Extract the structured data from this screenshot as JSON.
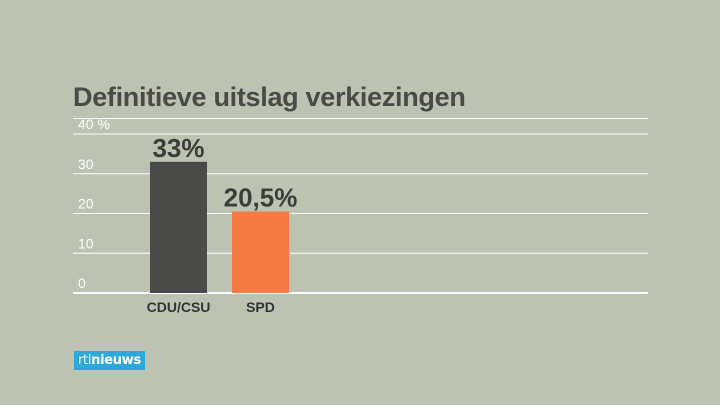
{
  "title": "Definitieve uitslag verkiezingen",
  "logo": {
    "prefix": "rtl",
    "name": "nieuws"
  },
  "chart_data": {
    "type": "bar",
    "categories": [
      "CDU/CSU",
      "SPD"
    ],
    "values": [
      33,
      20.5
    ],
    "data_labels": [
      "33%",
      "20,5%"
    ],
    "colors": [
      "#4a4a48",
      "#f57a45"
    ],
    "ylim": [
      0,
      40
    ],
    "yticks": [
      0,
      10,
      20,
      30,
      40
    ],
    "ytick_labels": [
      "0",
      "10",
      "20",
      "30",
      "40 %"
    ],
    "grid": true
  }
}
